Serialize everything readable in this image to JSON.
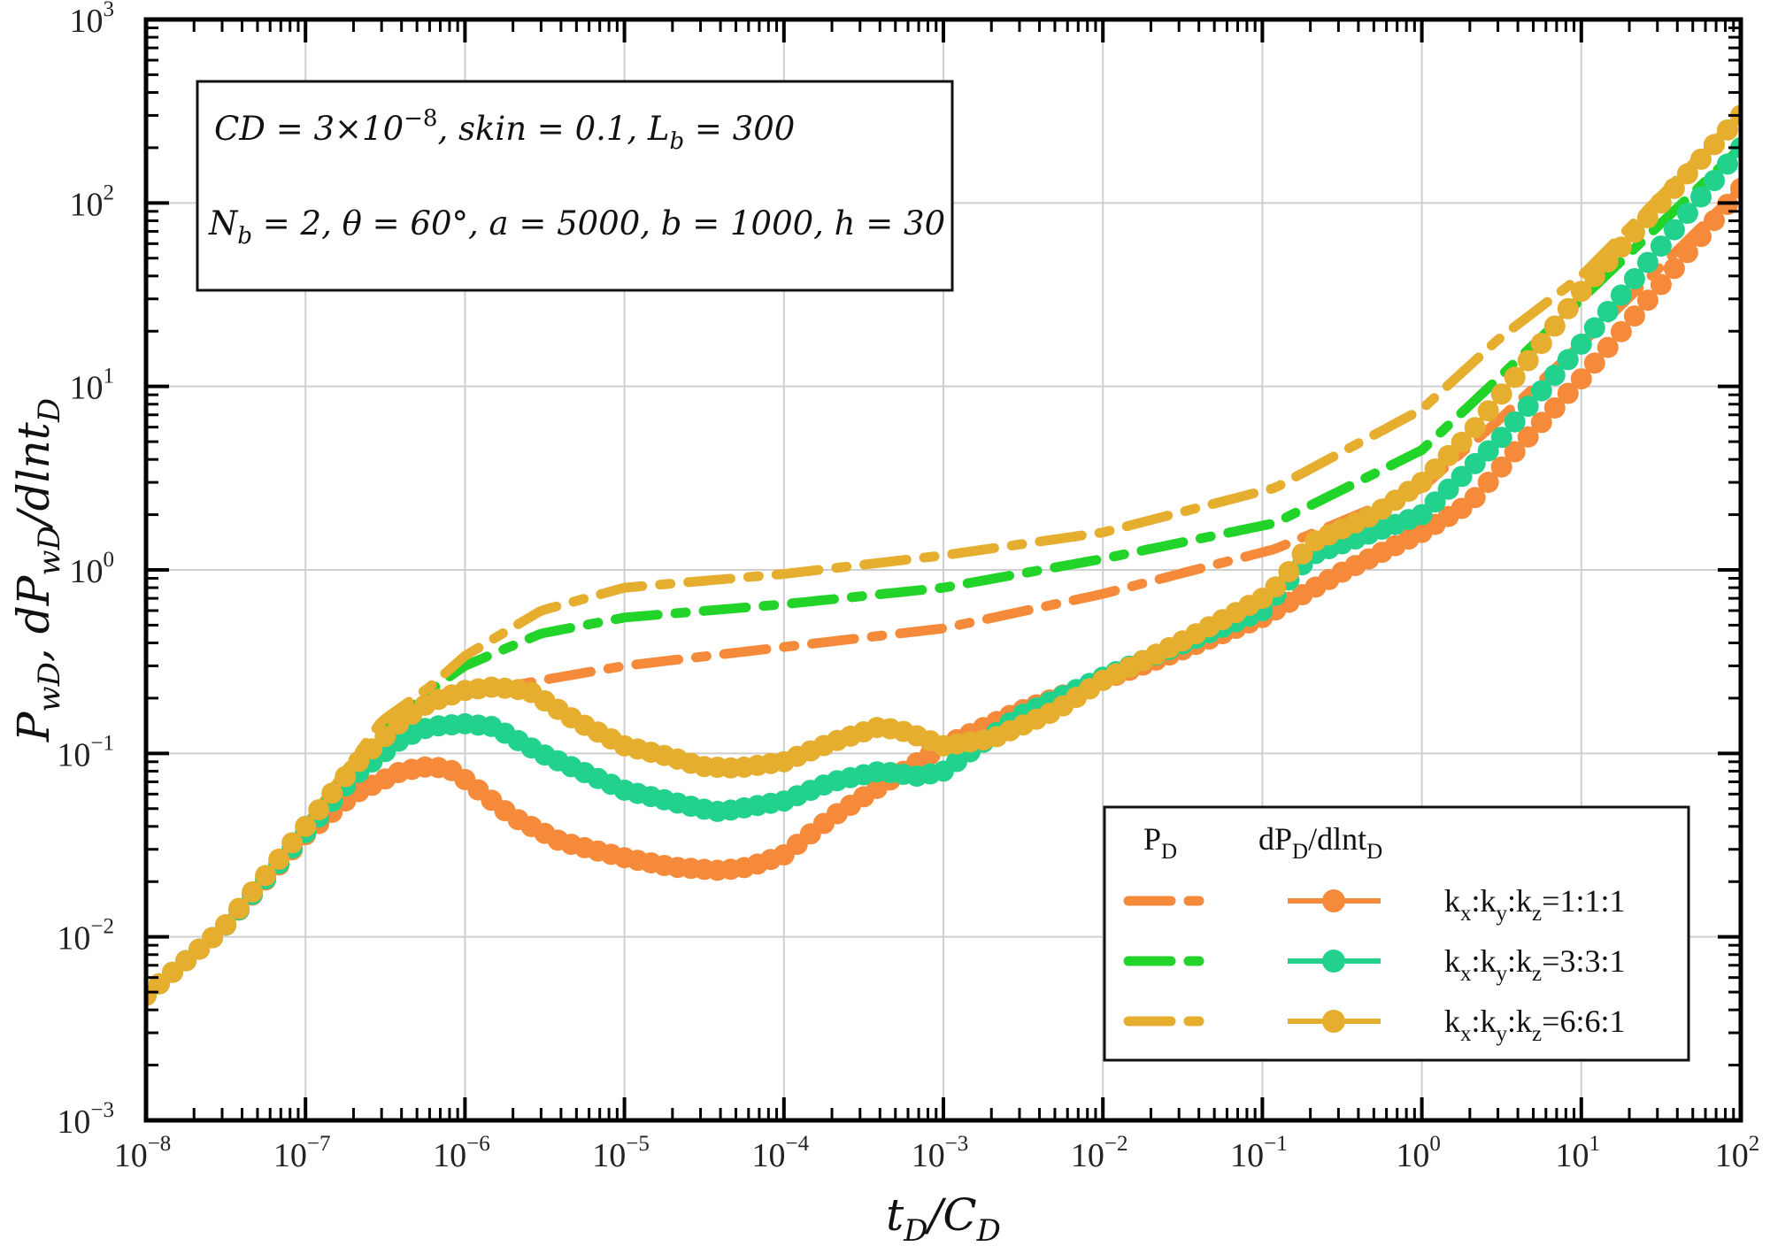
{
  "chart_data": {
    "type": "line",
    "x_scale": "log",
    "y_scale": "log",
    "xlim": [
      1e-08,
      100
    ],
    "ylim": [
      0.001,
      1000
    ],
    "grid": true,
    "xlabel": "t_D/C_D",
    "ylabel": "P_wD, dP_wD/dlnt_D",
    "x_tick_labels": [
      {
        "base": "10",
        "exp": "-8"
      },
      {
        "base": "10",
        "exp": "-7"
      },
      {
        "base": "10",
        "exp": "-6"
      },
      {
        "base": "10",
        "exp": "-5"
      },
      {
        "base": "10",
        "exp": "-4"
      },
      {
        "base": "10",
        "exp": "-3"
      },
      {
        "base": "10",
        "exp": "-2"
      },
      {
        "base": "10",
        "exp": "-1"
      },
      {
        "base": "10",
        "exp": "0"
      },
      {
        "base": "10",
        "exp": "1"
      },
      {
        "base": "10",
        "exp": "2"
      }
    ],
    "y_tick_labels": [
      {
        "base": "10",
        "exp": "-3"
      },
      {
        "base": "10",
        "exp": "-2"
      },
      {
        "base": "10",
        "exp": "-1"
      },
      {
        "base": "10",
        "exp": "0"
      },
      {
        "base": "10",
        "exp": "1"
      },
      {
        "base": "10",
        "exp": "2"
      },
      {
        "base": "10",
        "exp": "3"
      }
    ],
    "annotation": {
      "line1": "CD = 3×10^-8, skin = 0.1, L_b = 300",
      "line2": "N_b = 2, θ = 60°, a = 5000, b = 1000, h = 30"
    },
    "legend": {
      "position": "bottom-right",
      "col1": "P_D",
      "col2": "dP_D/dlnt_D"
    },
    "series": [
      {
        "name": "kx:ky:kz=1:1:1",
        "label": "k_x:k_y:k_z=1:1:1",
        "pd_color": "#F58A3A",
        "dpd_color": "#F58A3A",
        "pd": {
          "x": [
            1e-08,
            3e-08,
            1e-07,
            3e-07,
            6e-07,
            1e-06,
            3e-06,
            1e-05,
            0.0001,
            0.001,
            0.01,
            0.12,
            1,
            3,
            10,
            100
          ],
          "y": [
            0.0048,
            0.011,
            0.037,
            0.12,
            0.19,
            0.21,
            0.25,
            0.3,
            0.38,
            0.48,
            0.74,
            1.3,
            2.8,
            6.5,
            17,
            120
          ]
        },
        "dpd": {
          "x": [
            1e-08,
            3e-08,
            1e-07,
            2e-07,
            4e-07,
            6e-07,
            8e-07,
            1e-06,
            2e-06,
            4e-06,
            1e-05,
            2e-05,
            4e-05,
            6e-05,
            0.0001,
            0.0002,
            0.0004,
            0.001,
            0.003,
            0.01,
            0.03,
            0.1,
            0.3,
            1,
            2,
            4,
            10,
            30,
            100
          ],
          "y": [
            0.0048,
            0.011,
            0.036,
            0.06,
            0.08,
            0.085,
            0.082,
            0.072,
            0.045,
            0.033,
            0.027,
            0.024,
            0.023,
            0.024,
            0.028,
            0.045,
            0.066,
            0.11,
            0.17,
            0.25,
            0.36,
            0.55,
            0.95,
            1.6,
            2.3,
            4.6,
            11,
            34,
            120
          ]
        }
      },
      {
        "name": "kx:ky:kz=3:3:1",
        "label": "k_x:k_y:k_z=3:3:1",
        "pd_color": "#22D42A",
        "dpd_color": "#22D28C",
        "pd": {
          "x": [
            1e-08,
            3e-08,
            1e-07,
            3e-07,
            6e-07,
            1e-06,
            3e-06,
            1e-05,
            0.0001,
            0.001,
            0.01,
            0.12,
            1,
            3,
            10,
            100
          ],
          "y": [
            0.0048,
            0.011,
            0.038,
            0.13,
            0.22,
            0.3,
            0.45,
            0.55,
            0.65,
            0.8,
            1.15,
            1.8,
            4.5,
            11,
            30,
            200
          ]
        },
        "dpd": {
          "x": [
            1e-08,
            3e-08,
            1e-07,
            2e-07,
            4e-07,
            6e-07,
            1e-06,
            1.5e-06,
            3e-06,
            1e-05,
            3e-05,
            4e-05,
            0.0001,
            0.0002,
            0.0004,
            0.0007,
            0.001,
            0.003,
            0.01,
            0.1,
            0.2,
            1,
            3,
            10,
            30,
            100
          ],
          "y": [
            0.0048,
            0.011,
            0.037,
            0.075,
            0.12,
            0.14,
            0.145,
            0.14,
            0.1,
            0.063,
            0.05,
            0.048,
            0.055,
            0.07,
            0.08,
            0.075,
            0.08,
            0.16,
            0.26,
            0.6,
            1.2,
            2.0,
            5.0,
            17,
            55,
            200
          ]
        }
      },
      {
        "name": "kx:ky:kz=6:6:1",
        "label": "k_x:k_y:k_z=6:6:1",
        "pd_color": "#E5AE2E",
        "dpd_color": "#E5AE2E",
        "pd": {
          "x": [
            1e-08,
            3e-08,
            1e-07,
            3e-07,
            6e-07,
            1e-06,
            3e-06,
            1e-05,
            0.0001,
            0.001,
            0.01,
            0.12,
            1,
            3,
            10,
            100
          ],
          "y": [
            0.0048,
            0.011,
            0.04,
            0.15,
            0.23,
            0.34,
            0.6,
            0.8,
            0.95,
            1.2,
            1.6,
            2.8,
            7.5,
            18,
            40,
            300
          ]
        },
        "dpd": {
          "x": [
            1e-08,
            3e-08,
            1e-07,
            2e-07,
            4e-07,
            6e-07,
            1e-06,
            1.5e-06,
            2.5e-06,
            5e-06,
            1e-05,
            2e-05,
            3e-05,
            5e-05,
            0.0001,
            0.0002,
            0.0004,
            0.0006,
            0.001,
            0.002,
            0.005,
            0.01,
            0.03,
            0.1,
            0.13,
            0.2,
            0.5,
            1,
            2,
            5,
            10,
            30,
            100
          ],
          "y": [
            0.0048,
            0.011,
            0.04,
            0.085,
            0.15,
            0.19,
            0.22,
            0.23,
            0.22,
            0.15,
            0.11,
            0.095,
            0.085,
            0.083,
            0.09,
            0.115,
            0.14,
            0.13,
            0.11,
            0.12,
            0.17,
            0.25,
            0.4,
            0.7,
            0.85,
            1.4,
            2.0,
            3.0,
            5.5,
            15,
            33,
            95,
            300
          ]
        }
      }
    ]
  }
}
